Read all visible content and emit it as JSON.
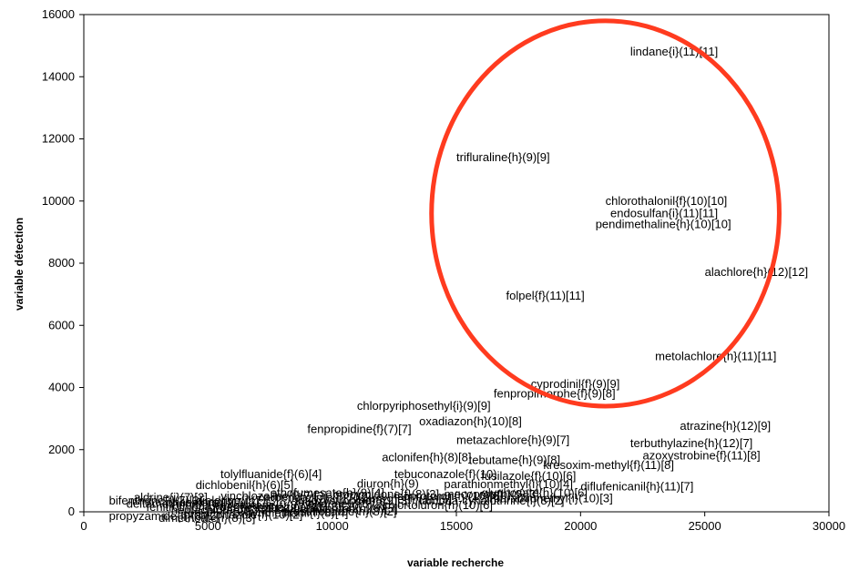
{
  "chart_data": {
    "type": "scatter",
    "title": "",
    "xlabel": "variable recherche",
    "ylabel": "variable détection",
    "xlim": [
      0,
      30000
    ],
    "ylim": [
      0,
      16000
    ],
    "xticks": [
      "0",
      "5000",
      "10000",
      "15000",
      "20000",
      "25000",
      "30000"
    ],
    "yticks": [
      "0",
      "2000",
      "4000",
      "6000",
      "8000",
      "10000",
      "12000",
      "14000",
      "16000"
    ],
    "grid": false,
    "legend": "none",
    "highlight": {
      "shape": "ellipse",
      "color": "#ff3b1f",
      "center": [
        21000,
        9600
      ],
      "radius_x": 7000,
      "radius_y": 6200
    },
    "points": [
      {
        "label": "lindane{i}(11)[11]",
        "x": 22000,
        "y": 14800
      },
      {
        "label": "trifluraline{h}(9)[9]",
        "x": 15000,
        "y": 11400
      },
      {
        "label": "chlorothalonil{f}(10)[10]",
        "x": 21000,
        "y": 10000
      },
      {
        "label": "endosulfan{i}(11)[11]",
        "x": 21200,
        "y": 9600
      },
      {
        "label": "pendimethaline{h}(10)[10]",
        "x": 20600,
        "y": 9250
      },
      {
        "label": "alachlore{h}(12)[12]",
        "x": 25000,
        "y": 7700
      },
      {
        "label": "folpel{f}(11)[11]",
        "x": 17000,
        "y": 6950
      },
      {
        "label": "metolachlore{h}(11)[11]",
        "x": 23000,
        "y": 5000
      },
      {
        "label": "cyprodinil{f}(9)[9]",
        "x": 18000,
        "y": 4100
      },
      {
        "label": "fenpropimorphe{f}(9)[8]",
        "x": 16500,
        "y": 3800
      },
      {
        "label": "chlorpyriphosethyl{i}(9)[9]",
        "x": 11000,
        "y": 3400
      },
      {
        "label": "oxadiazon{h}(10)[8]",
        "x": 13500,
        "y": 2900
      },
      {
        "label": "fenpropidine{f}(7)[7]",
        "x": 9000,
        "y": 2650
      },
      {
        "label": "atrazine{h}(12)[9]",
        "x": 24000,
        "y": 2750
      },
      {
        "label": "metazachlore{h}(9)[7]",
        "x": 15000,
        "y": 2300
      },
      {
        "label": "terbuthylazine{h}(12)[7]",
        "x": 22000,
        "y": 2200
      },
      {
        "label": "aclonifen{h}(8)[8]",
        "x": 12000,
        "y": 1750
      },
      {
        "label": "azoxystrobine{f}(11)[8]",
        "x": 22500,
        "y": 1800
      },
      {
        "label": "tebutame{h}(9)[8]",
        "x": 15500,
        "y": 1650
      },
      {
        "label": "kresoxim-methyl{f}(11)[8]",
        "x": 18500,
        "y": 1500
      },
      {
        "label": "tolylfluanide{f}(6)[4]",
        "x": 5500,
        "y": 1200
      },
      {
        "label": "tebuconazole{f}(10)",
        "x": 12500,
        "y": 1200
      },
      {
        "label": "fusilazole{f}(10)[6]",
        "x": 16000,
        "y": 1150
      },
      {
        "label": "dichlobenil{h}(6)[5]",
        "x": 4500,
        "y": 850
      },
      {
        "label": "diuron{h}(9)",
        "x": 11000,
        "y": 900
      },
      {
        "label": "parathionmethyl{i}(10)[4]",
        "x": 14500,
        "y": 880
      },
      {
        "label": "diflufenicanil{h}(11)[7]",
        "x": 20000,
        "y": 800
      },
      {
        "label": "parathionethyl{i}(10)[3]",
        "x": 16500,
        "y": 430
      }
    ],
    "clustered_labels": [
      {
        "text": "bifenthrine{i}(7)[3]",
        "x": 500,
        "y": 350
      },
      {
        "text": "deltamethrine{i}(8)[2]",
        "x": 1200,
        "y": 250
      },
      {
        "text": "fenitrothion{i}(6)[2]",
        "x": 2000,
        "y": 150
      },
      {
        "text": "phosalone{i}(7)[2]",
        "x": 2800,
        "y": 300
      },
      {
        "text": "propyzamide{h}(8)[2]",
        "x": 500,
        "y": -150
      },
      {
        "text": "propiconazole{f}(10)[2]",
        "x": 3500,
        "y": -100
      },
      {
        "text": "captane{f}(8)[3]",
        "x": 5500,
        "y": 200
      },
      {
        "text": "carbendazime{f}(7)[2]",
        "x": 6500,
        "y": 450
      },
      {
        "text": "prosulfocarbe{h}(8)[2]",
        "x": 7500,
        "y": 0
      },
      {
        "text": "endrine{i}(6)[2]",
        "x": 8500,
        "y": 250
      },
      {
        "text": "procymidone{f}(8)[3]",
        "x": 9500,
        "y": 550
      },
      {
        "text": "simazine{h}(11)[5]",
        "x": 10500,
        "y": 400
      },
      {
        "text": "isoproturon{h}(10)[6]",
        "x": 12000,
        "y": 500
      },
      {
        "text": "lambda-cyhalothrine{i}(8)[2]",
        "x": 13000,
        "y": 350
      },
      {
        "text": "heptachlore{i}(6)[2]",
        "x": 3000,
        "y": 50
      },
      {
        "text": "aldrine{i}(7)[2]",
        "x": 1500,
        "y": 450
      },
      {
        "text": "dieldrine{i}(7)[3]",
        "x": 4000,
        "y": 350
      },
      {
        "text": "pyrimethanil{f}(8)[4]",
        "x": 6000,
        "y": -50
      },
      {
        "text": "ethofumesate{h}(9)[4]",
        "x": 7000,
        "y": 600
      },
      {
        "text": "linuron{h}(9)[5]",
        "x": 9000,
        "y": 100
      },
      {
        "text": "chlortoluron{h}(10)[6]",
        "x": 11500,
        "y": 200
      },
      {
        "text": "mecoprop{h}(9)[3]",
        "x": 14000,
        "y": 550
      },
      {
        "text": "glyphosate{h}(10)[6]",
        "x": 15500,
        "y": 600
      },
      {
        "text": "dimethoate{i}(8)[3]",
        "x": 2500,
        "y": -200
      },
      {
        "text": "cypermethrine{i}(7)[2]",
        "x": 4500,
        "y": 150
      },
      {
        "text": "trifloxystrobine{f}(9)[3]",
        "x": 8000,
        "y": 350
      },
      {
        "text": "fluazinam{f}(8)[2]",
        "x": 6800,
        "y": 150
      },
      {
        "text": "vinchlozoline{f}(7)[3]",
        "x": 5000,
        "y": 500
      }
    ]
  }
}
